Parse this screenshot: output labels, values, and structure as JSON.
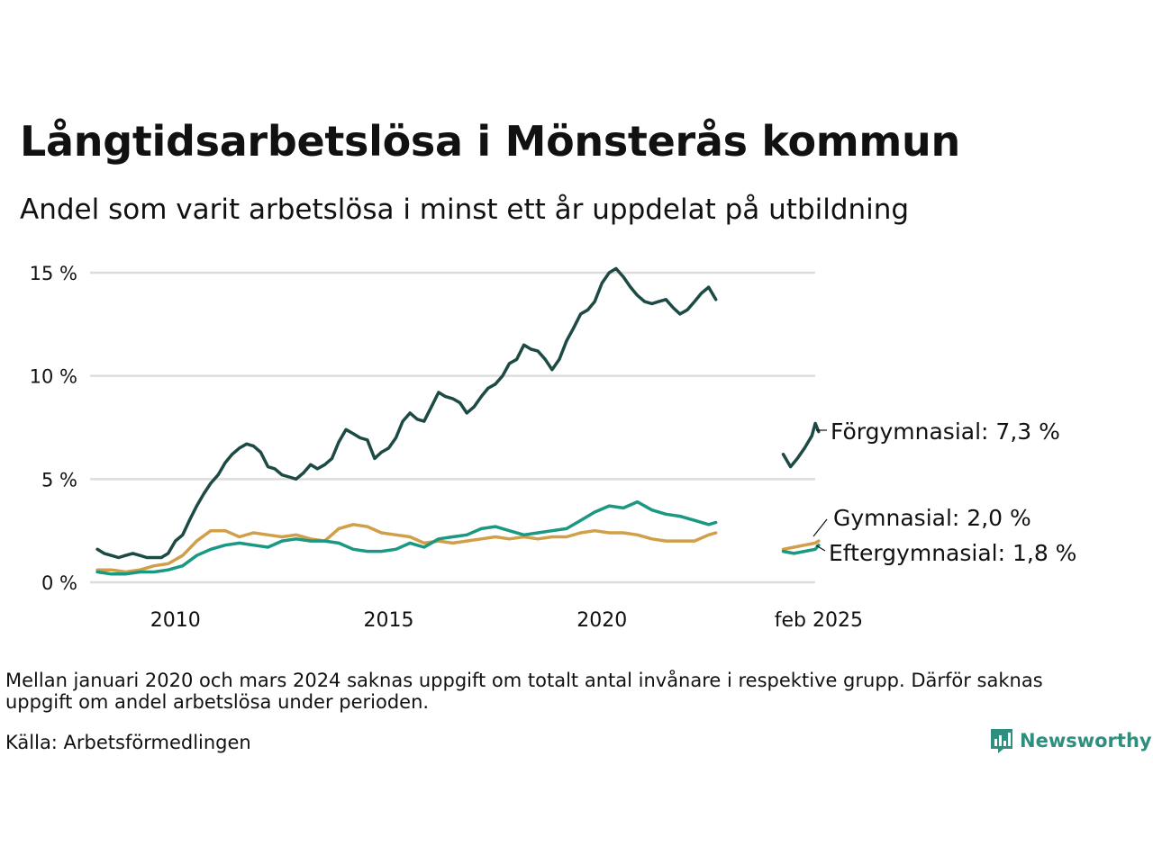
{
  "header": {
    "title": "Långtidsarbetslösa i Mönsterås kommun",
    "subtitle": "Andel som varit arbetslösa i minst ett år uppdelat på utbildning"
  },
  "footer": {
    "note": "Mellan januari 2020 och mars 2024 saknas uppgift om totalt antal invånare i respektive grupp. Därför saknas uppgift om andel arbetslösa under perioden.",
    "source": "Källa: Arbetsförmedlingen",
    "brand": "Newsworthy"
  },
  "colors": {
    "forgymnasial": "#1d4a44",
    "gymnasial": "#d19f48",
    "eftergymnasial": "#1a9882",
    "grid": "#dddddd",
    "brand": "#2e8f7e"
  },
  "chart_data": {
    "type": "line",
    "y_unit": "%",
    "y_range": [
      0,
      15
    ],
    "y_ticks": [
      {
        "value": 0,
        "label": "0 %"
      },
      {
        "value": 5,
        "label": "5 %"
      },
      {
        "value": 10,
        "label": "10 %"
      },
      {
        "value": 15,
        "label": "15 %"
      }
    ],
    "x_ticks": [
      {
        "value": 2010,
        "label": "2010"
      },
      {
        "value": 2015,
        "label": "2015"
      },
      {
        "value": 2020,
        "label": "2020"
      },
      {
        "value": 2025.08,
        "label": "feb 2025"
      }
    ],
    "gap": "2020-2024 saknas",
    "series": [
      {
        "name": "Förgymnasial",
        "end_label": "Förgymnasial: 7,3 %",
        "color": "#1d4a44",
        "segments": [
          [
            [
              2008.17,
              1.6
            ],
            [
              2008.33,
              1.4
            ],
            [
              2008.5,
              1.3
            ],
            [
              2008.67,
              1.2
            ],
            [
              2008.83,
              1.3
            ],
            [
              2009.0,
              1.4
            ],
            [
              2009.17,
              1.3
            ],
            [
              2009.33,
              1.2
            ],
            [
              2009.5,
              1.2
            ],
            [
              2009.67,
              1.2
            ],
            [
              2009.83,
              1.4
            ],
            [
              2010.0,
              2.0
            ],
            [
              2010.17,
              2.3
            ],
            [
              2010.33,
              3.0
            ],
            [
              2010.5,
              3.7
            ],
            [
              2010.67,
              4.3
            ],
            [
              2010.83,
              4.8
            ],
            [
              2011.0,
              5.2
            ],
            [
              2011.17,
              5.8
            ],
            [
              2011.33,
              6.2
            ],
            [
              2011.5,
              6.5
            ],
            [
              2011.67,
              6.7
            ],
            [
              2011.83,
              6.6
            ],
            [
              2012.0,
              6.3
            ],
            [
              2012.17,
              5.6
            ],
            [
              2012.33,
              5.5
            ],
            [
              2012.5,
              5.2
            ],
            [
              2012.67,
              5.1
            ],
            [
              2012.83,
              5.0
            ],
            [
              2013.0,
              5.3
            ],
            [
              2013.17,
              5.7
            ],
            [
              2013.33,
              5.5
            ],
            [
              2013.5,
              5.7
            ],
            [
              2013.67,
              6.0
            ],
            [
              2013.83,
              6.8
            ],
            [
              2014.0,
              7.4
            ],
            [
              2014.17,
              7.2
            ],
            [
              2014.33,
              7.0
            ],
            [
              2014.5,
              6.9
            ],
            [
              2014.67,
              6.0
            ],
            [
              2014.83,
              6.3
            ],
            [
              2015.0,
              6.5
            ],
            [
              2015.17,
              7.0
            ],
            [
              2015.33,
              7.8
            ],
            [
              2015.5,
              8.2
            ],
            [
              2015.67,
              7.9
            ],
            [
              2015.83,
              7.8
            ],
            [
              2016.0,
              8.5
            ],
            [
              2016.17,
              9.2
            ],
            [
              2016.33,
              9.0
            ],
            [
              2016.5,
              8.9
            ],
            [
              2016.67,
              8.7
            ],
            [
              2016.83,
              8.2
            ],
            [
              2017.0,
              8.5
            ],
            [
              2017.17,
              9.0
            ],
            [
              2017.33,
              9.4
            ],
            [
              2017.5,
              9.6
            ],
            [
              2017.67,
              10.0
            ],
            [
              2017.83,
              10.6
            ],
            [
              2018.0,
              10.8
            ],
            [
              2018.17,
              11.5
            ],
            [
              2018.33,
              11.3
            ],
            [
              2018.5,
              11.2
            ],
            [
              2018.67,
              10.8
            ],
            [
              2018.83,
              10.3
            ],
            [
              2019.0,
              10.8
            ],
            [
              2019.17,
              11.7
            ],
            [
              2019.33,
              12.3
            ],
            [
              2019.5,
              13.0
            ],
            [
              2019.67,
              13.2
            ],
            [
              2019.83,
              13.6
            ],
            [
              2020.0,
              14.5
            ],
            [
              2020.17,
              15.0
            ],
            [
              2020.33,
              15.2
            ],
            [
              2020.5,
              14.8
            ],
            [
              2020.67,
              14.3
            ],
            [
              2020.83,
              13.9
            ],
            [
              2021.0,
              13.6
            ],
            [
              2021.17,
              13.5
            ],
            [
              2021.33,
              13.6
            ],
            [
              2021.5,
              13.7
            ],
            [
              2021.67,
              13.3
            ],
            [
              2021.83,
              13.0
            ],
            [
              2022.0,
              13.2
            ],
            [
              2022.17,
              13.6
            ],
            [
              2022.33,
              14.0
            ],
            [
              2022.5,
              14.3
            ],
            [
              2022.67,
              13.7
            ]
          ],
          [
            [
              2024.25,
              6.2
            ],
            [
              2024.42,
              5.6
            ],
            [
              2024.58,
              6.0
            ],
            [
              2024.75,
              6.5
            ],
            [
              2024.92,
              7.1
            ],
            [
              2025.0,
              7.7
            ],
            [
              2025.08,
              7.3
            ]
          ]
        ]
      },
      {
        "name": "Gymnasial",
        "end_label": "Gymnasial: 2,0 %",
        "color": "#d19f48",
        "segments": [
          [
            [
              2008.17,
              0.6
            ],
            [
              2008.5,
              0.6
            ],
            [
              2008.83,
              0.5
            ],
            [
              2009.17,
              0.6
            ],
            [
              2009.5,
              0.8
            ],
            [
              2009.83,
              0.9
            ],
            [
              2010.17,
              1.3
            ],
            [
              2010.5,
              2.0
            ],
            [
              2010.83,
              2.5
            ],
            [
              2011.17,
              2.5
            ],
            [
              2011.5,
              2.2
            ],
            [
              2011.83,
              2.4
            ],
            [
              2012.17,
              2.3
            ],
            [
              2012.5,
              2.2
            ],
            [
              2012.83,
              2.3
            ],
            [
              2013.17,
              2.1
            ],
            [
              2013.5,
              2.0
            ],
            [
              2013.83,
              2.6
            ],
            [
              2014.17,
              2.8
            ],
            [
              2014.5,
              2.7
            ],
            [
              2014.83,
              2.4
            ],
            [
              2015.17,
              2.3
            ],
            [
              2015.5,
              2.2
            ],
            [
              2015.83,
              1.9
            ],
            [
              2016.17,
              2.0
            ],
            [
              2016.5,
              1.9
            ],
            [
              2016.83,
              2.0
            ],
            [
              2017.17,
              2.1
            ],
            [
              2017.5,
              2.2
            ],
            [
              2017.83,
              2.1
            ],
            [
              2018.17,
              2.2
            ],
            [
              2018.5,
              2.1
            ],
            [
              2018.83,
              2.2
            ],
            [
              2019.17,
              2.2
            ],
            [
              2019.5,
              2.4
            ],
            [
              2019.83,
              2.5
            ],
            [
              2020.17,
              2.4
            ],
            [
              2020.5,
              2.4
            ],
            [
              2020.83,
              2.3
            ],
            [
              2021.17,
              2.1
            ],
            [
              2021.5,
              2.0
            ],
            [
              2021.83,
              2.0
            ],
            [
              2022.17,
              2.0
            ],
            [
              2022.5,
              2.3
            ],
            [
              2022.67,
              2.4
            ]
          ],
          [
            [
              2024.25,
              1.6
            ],
            [
              2024.5,
              1.7
            ],
            [
              2024.75,
              1.8
            ],
            [
              2025.0,
              1.9
            ],
            [
              2025.08,
              2.0
            ]
          ]
        ]
      },
      {
        "name": "Eftergymnasial",
        "end_label": "Eftergymnasial: 1,8 %",
        "color": "#1a9882",
        "segments": [
          [
            [
              2008.17,
              0.5
            ],
            [
              2008.5,
              0.4
            ],
            [
              2008.83,
              0.4
            ],
            [
              2009.17,
              0.5
            ],
            [
              2009.5,
              0.5
            ],
            [
              2009.83,
              0.6
            ],
            [
              2010.17,
              0.8
            ],
            [
              2010.5,
              1.3
            ],
            [
              2010.83,
              1.6
            ],
            [
              2011.17,
              1.8
            ],
            [
              2011.5,
              1.9
            ],
            [
              2011.83,
              1.8
            ],
            [
              2012.17,
              1.7
            ],
            [
              2012.5,
              2.0
            ],
            [
              2012.83,
              2.1
            ],
            [
              2013.17,
              2.0
            ],
            [
              2013.5,
              2.0
            ],
            [
              2013.83,
              1.9
            ],
            [
              2014.17,
              1.6
            ],
            [
              2014.5,
              1.5
            ],
            [
              2014.83,
              1.5
            ],
            [
              2015.17,
              1.6
            ],
            [
              2015.5,
              1.9
            ],
            [
              2015.83,
              1.7
            ],
            [
              2016.17,
              2.1
            ],
            [
              2016.5,
              2.2
            ],
            [
              2016.83,
              2.3
            ],
            [
              2017.17,
              2.6
            ],
            [
              2017.5,
              2.7
            ],
            [
              2017.83,
              2.5
            ],
            [
              2018.17,
              2.3
            ],
            [
              2018.5,
              2.4
            ],
            [
              2018.83,
              2.5
            ],
            [
              2019.17,
              2.6
            ],
            [
              2019.5,
              3.0
            ],
            [
              2019.83,
              3.4
            ],
            [
              2020.17,
              3.7
            ],
            [
              2020.5,
              3.6
            ],
            [
              2020.83,
              3.9
            ],
            [
              2021.17,
              3.5
            ],
            [
              2021.5,
              3.3
            ],
            [
              2021.83,
              3.2
            ],
            [
              2022.17,
              3.0
            ],
            [
              2022.5,
              2.8
            ],
            [
              2022.67,
              2.9
            ]
          ],
          [
            [
              2024.25,
              1.5
            ],
            [
              2024.5,
              1.4
            ],
            [
              2024.75,
              1.5
            ],
            [
              2025.0,
              1.6
            ],
            [
              2025.08,
              1.8
            ]
          ]
        ]
      }
    ]
  }
}
